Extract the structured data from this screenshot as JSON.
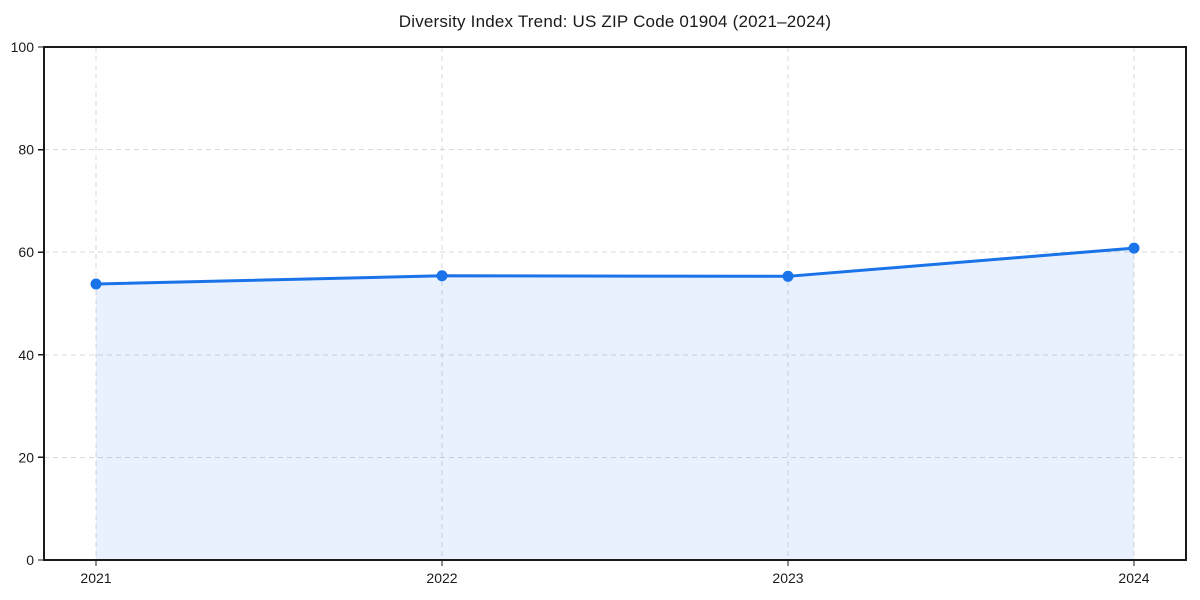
{
  "page": {
    "background": "#ffffff"
  },
  "chart_data": {
    "type": "line",
    "title": "Diversity Index Trend: US ZIP Code 01904 (2021–2024)",
    "categories": [
      "2021",
      "2022",
      "2023",
      "2024"
    ],
    "values": [
      53.8,
      55.4,
      55.3,
      60.8
    ],
    "xlabel": "",
    "ylabel": "",
    "ylim": [
      0,
      100
    ],
    "y_ticks": [
      0,
      20,
      40,
      60,
      80,
      100
    ],
    "grid": "dashed-both-axes",
    "legend": "none",
    "area_fill_below_line": true,
    "marker": "circle",
    "colors": {
      "line": "#1a73e8",
      "marker": "#1a73e8",
      "area": "rgba(26,115,232,0.10)",
      "grid": "#d9d9d9",
      "axis": "#1a1a1a",
      "text": "#1a1a1a",
      "background": "#ffffff"
    }
  }
}
